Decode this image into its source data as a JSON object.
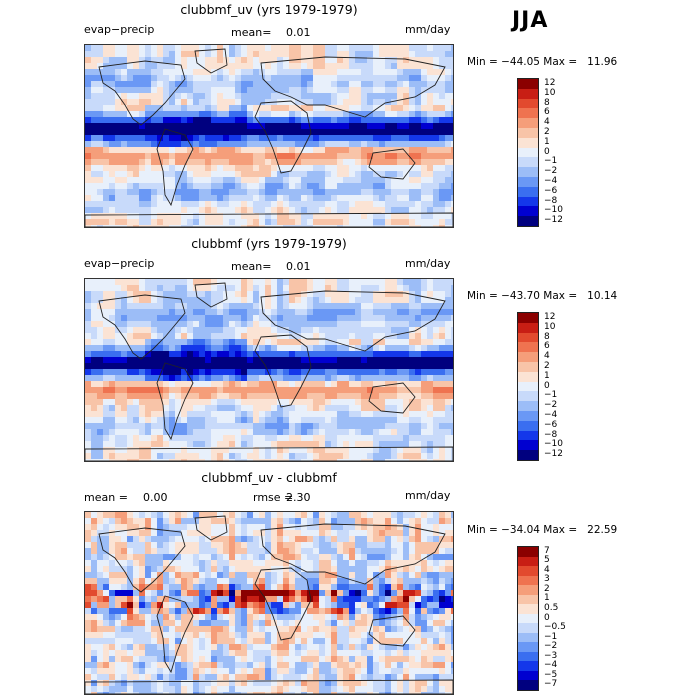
{
  "season": "JJA",
  "panels": [
    {
      "title": "clubbmf_uv (yrs 1979-1979)",
      "left_label": "evap−precip",
      "mean_label": "mean=",
      "mean_value": "0.01",
      "units": "mm/day",
      "minmax": "Min = −44.05 Max =   11.96",
      "colorbar_labels": [
        "12",
        "10",
        "8",
        "6",
        "4",
        "2",
        "1",
        "0",
        "−1",
        "−2",
        "−4",
        "−6",
        "−8",
        "−10",
        "−12"
      ]
    },
    {
      "title": "clubbmf (yrs 1979-1979)",
      "left_label": "evap−precip",
      "mean_label": "mean=",
      "mean_value": "0.01",
      "units": "mm/day",
      "minmax": "Min = −43.70 Max =   10.14",
      "colorbar_labels": [
        "12",
        "10",
        "8",
        "6",
        "4",
        "2",
        "1",
        "0",
        "−1",
        "−2",
        "−4",
        "−6",
        "−8",
        "−10",
        "−12"
      ]
    },
    {
      "title": "clubbmf_uv - clubbmf",
      "mean_label": "mean =",
      "mean_value": "0.00",
      "rmse_label": "rmse =",
      "rmse_value": "2.30",
      "units": "mm/day",
      "minmax": "Min = −34.04 Max =   22.59",
      "colorbar_labels": [
        "7",
        "5",
        "4",
        "3",
        "2",
        "1",
        "0.5",
        "0",
        "−0.5",
        "−1",
        "−2",
        "−3",
        "−4",
        "−5",
        "−7"
      ]
    }
  ],
  "chart_data": [
    {
      "type": "heatmap",
      "title": "clubbmf_uv (yrs 1979-1979)",
      "variable": "evap−precip",
      "units": "mm/day",
      "mean": 0.01,
      "min": -44.05,
      "max": 11.96,
      "levels": [
        -12,
        -10,
        -8,
        -6,
        -4,
        -2,
        -1,
        0,
        1,
        2,
        4,
        6,
        8,
        10,
        12
      ],
      "colors": [
        "#00007f",
        "#0000d0",
        "#1437ea",
        "#3a6ef0",
        "#6a98f5",
        "#9cbdf7",
        "#c8dafa",
        "#e8f0fb",
        "#fbe3d4",
        "#f8c4a8",
        "#f59e7a",
        "#ef7350",
        "#e24a2e",
        "#c81e14",
        "#8b0000"
      ]
    },
    {
      "type": "heatmap",
      "title": "clubbmf (yrs 1979-1979)",
      "variable": "evap−precip",
      "units": "mm/day",
      "mean": 0.01,
      "min": -43.7,
      "max": 10.14,
      "levels": [
        -12,
        -10,
        -8,
        -6,
        -4,
        -2,
        -1,
        0,
        1,
        2,
        4,
        6,
        8,
        10,
        12
      ],
      "colors": [
        "#00007f",
        "#0000d0",
        "#1437ea",
        "#3a6ef0",
        "#6a98f5",
        "#9cbdf7",
        "#c8dafa",
        "#e8f0fb",
        "#fbe3d4",
        "#f8c4a8",
        "#f59e7a",
        "#ef7350",
        "#e24a2e",
        "#c81e14",
        "#8b0000"
      ]
    },
    {
      "type": "heatmap",
      "title": "clubbmf_uv - clubbmf",
      "units": "mm/day",
      "mean": 0.0,
      "rmse": 2.3,
      "min": -34.04,
      "max": 22.59,
      "levels": [
        -7,
        -5,
        -4,
        -3,
        -2,
        -1,
        -0.5,
        0,
        0.5,
        1,
        2,
        3,
        4,
        5,
        7
      ],
      "colors": [
        "#00007f",
        "#0000d0",
        "#1437ea",
        "#3a6ef0",
        "#6a98f5",
        "#9cbdf7",
        "#c8dafa",
        "#e8f0fb",
        "#fbe3d4",
        "#f8c4a8",
        "#f59e7a",
        "#ef7350",
        "#e24a2e",
        "#c81e14",
        "#8b0000"
      ]
    }
  ]
}
